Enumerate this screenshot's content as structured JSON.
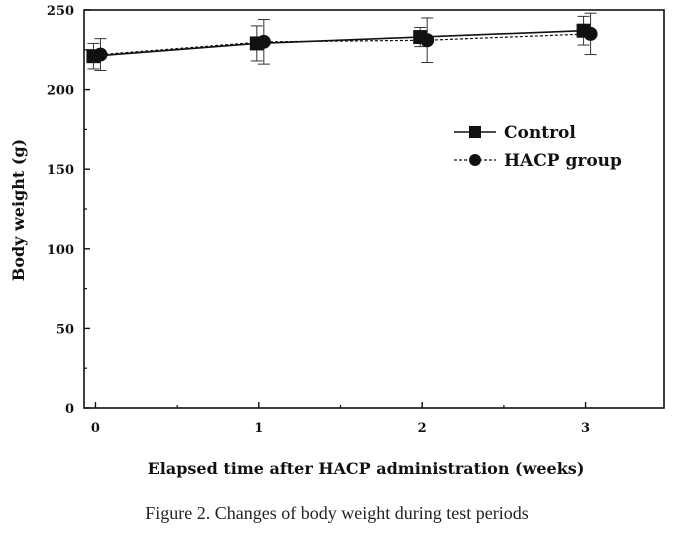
{
  "chart_data": {
    "type": "line",
    "xlabel": "Elapsed time after HACP administration (weeks)",
    "ylabel": "Body weight (g)",
    "x": [
      0,
      1,
      2,
      3
    ],
    "x_ticks": [
      "0",
      "1",
      "2",
      "3"
    ],
    "xlim": [
      -0.07,
      3.48
    ],
    "ylim": [
      0,
      250
    ],
    "y_ticks": [
      "0",
      "50",
      "100",
      "150",
      "200",
      "250"
    ],
    "grid": false,
    "legend_position": "right",
    "series": [
      {
        "name": "Control",
        "marker": "square",
        "line": "solid",
        "values": [
          221,
          229,
          233,
          237
        ],
        "error": [
          8,
          11,
          6,
          9
        ]
      },
      {
        "name": "HACP group",
        "marker": "circle",
        "line": "dashed",
        "values": [
          222,
          230,
          231,
          235
        ],
        "error": [
          10,
          14,
          14,
          13
        ]
      }
    ]
  },
  "caption": "Figure 2. Changes of body weight during test periods"
}
